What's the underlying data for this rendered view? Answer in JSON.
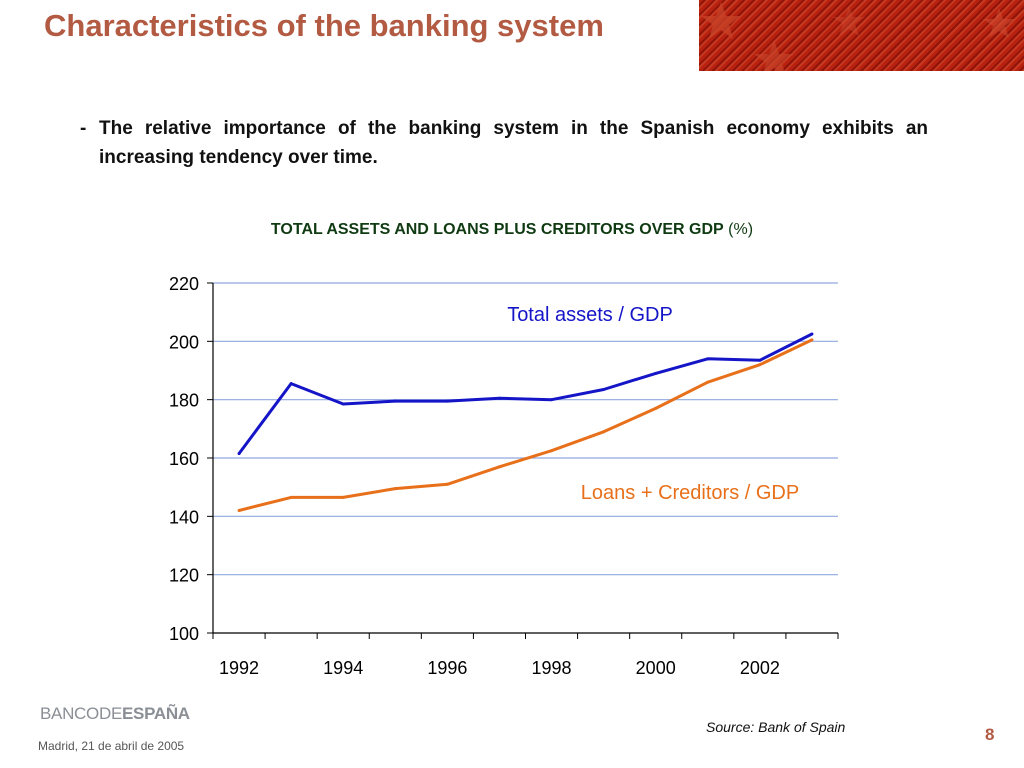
{
  "slide": {
    "title": "Characteristics of the banking system",
    "bullet_dash": "-",
    "bullet_text": "The relative importance of the banking system in the Spanish economy exhibits an increasing tendency over time.",
    "logo": {
      "banco": "BANCO",
      "de": "DE",
      "espana": "ESPAÑA"
    },
    "footer_date": "Madrid,  21 de abril de 2005",
    "source": "Source: Bank of Spain",
    "page_number": "8"
  },
  "colors": {
    "title": "#b35a43",
    "total_assets": "#1515c8",
    "loans_creditors": "#e8701a",
    "gridline": "#8fa8df"
  },
  "chart_data": {
    "type": "line",
    "title": "TOTAL ASSETS AND LOANS PLUS CREDITORS OVER GDP",
    "title_unit": "(%)",
    "xlabel": "",
    "ylabel": "",
    "ylim": [
      100,
      220
    ],
    "yticks": [
      100,
      120,
      140,
      160,
      180,
      200,
      220
    ],
    "x": [
      1992,
      1993,
      1994,
      1995,
      1996,
      1997,
      1998,
      1999,
      2000,
      2001,
      2002,
      2003
    ],
    "xticklabels": [
      "1992",
      "1994",
      "1996",
      "1998",
      "2000",
      "2002"
    ],
    "grid": true,
    "series": [
      {
        "name": "Total assets / GDP",
        "color": "#1515c8",
        "values": [
          161.5,
          185.5,
          178.5,
          179.5,
          179.5,
          180.5,
          180,
          183.5,
          189,
          194,
          193.5,
          202.5
        ]
      },
      {
        "name": "Loans + Creditors / GDP",
        "color": "#e8701a",
        "values": [
          142,
          146.5,
          146.5,
          149.5,
          151,
          157,
          162.5,
          169,
          177,
          186,
          192,
          200.5
        ]
      }
    ]
  }
}
